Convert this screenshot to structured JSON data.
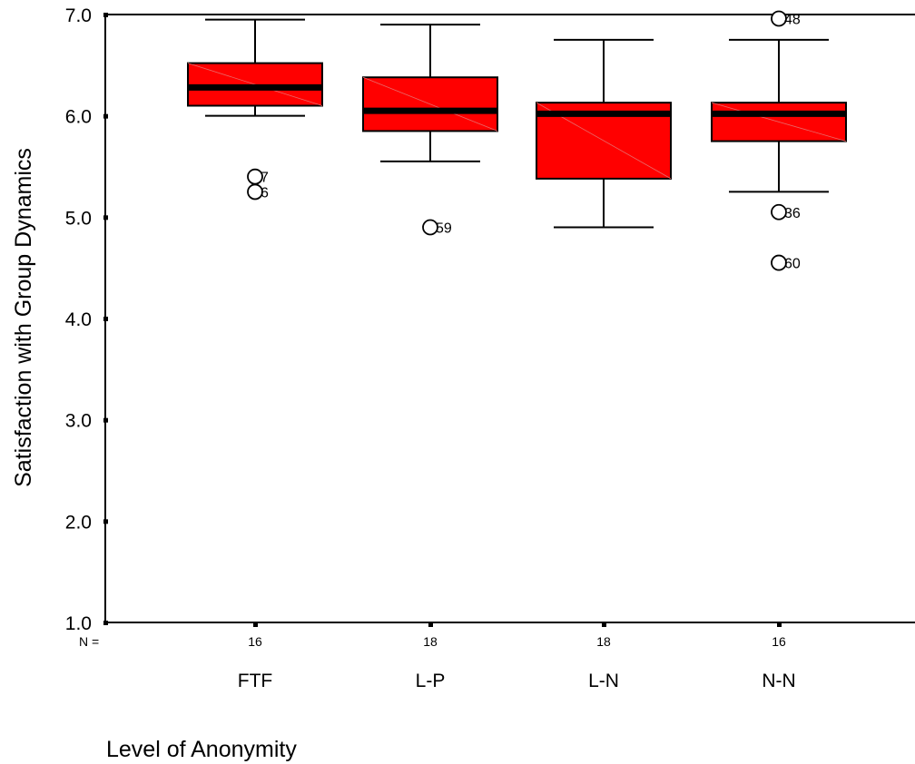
{
  "chart_data": {
    "type": "boxplot",
    "title": "",
    "xlabel": "Level of Anonymity",
    "ylabel": "Satisfaction with Group Dynamics",
    "ylim": [
      1.0,
      7.0
    ],
    "yticks": [
      "1.0",
      "2.0",
      "3.0",
      "4.0",
      "5.0",
      "6.0",
      "7.0"
    ],
    "n_prefix": "N =",
    "grid": false,
    "legend": "none",
    "box_color": "#ff0000",
    "categories": [
      "FTF",
      "L-P",
      "L-N",
      "N-N"
    ],
    "boxes": [
      {
        "category": "FTF",
        "n": "16",
        "whisker_low": 6.0,
        "q1": 6.1,
        "median": 6.28,
        "q3": 6.52,
        "whisker_high": 6.95,
        "outliers": [
          {
            "value": 5.4,
            "label": "7"
          },
          {
            "value": 5.25,
            "label": "6"
          }
        ]
      },
      {
        "category": "L-P",
        "n": "18",
        "whisker_low": 5.55,
        "q1": 5.85,
        "median": 6.05,
        "q3": 6.38,
        "whisker_high": 6.9,
        "outliers": [
          {
            "value": 4.9,
            "label": "59"
          }
        ]
      },
      {
        "category": "L-N",
        "n": "18",
        "whisker_low": 4.9,
        "q1": 5.38,
        "median": 6.02,
        "q3": 6.13,
        "whisker_high": 6.75,
        "outliers": []
      },
      {
        "category": "N-N",
        "n": "16",
        "whisker_low": 5.25,
        "q1": 5.75,
        "median": 6.02,
        "q3": 6.13,
        "whisker_high": 6.75,
        "outliers": [
          {
            "value": 6.96,
            "label": "48"
          },
          {
            "value": 5.05,
            "label": "36"
          },
          {
            "value": 4.55,
            "label": "60"
          }
        ]
      }
    ]
  }
}
